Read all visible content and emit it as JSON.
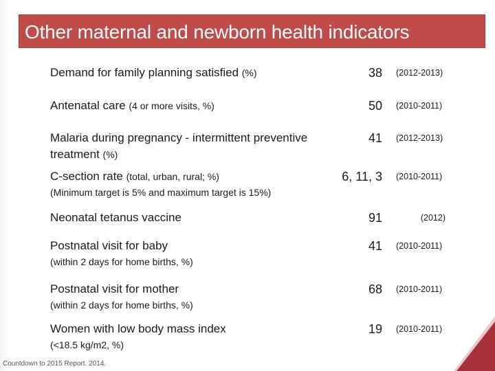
{
  "slide": {
    "title": "Other maternal and newborn health indicators",
    "source": "Countdown to 2015 Report. 2014."
  },
  "indicators": [
    {
      "label": "Demand for family planning satisfied",
      "note": "(%)",
      "sub": "",
      "value": "38",
      "period": "(2012-2013)"
    },
    {
      "label": "Antenatal care",
      "note": "(4 or more visits, %)",
      "sub": "",
      "value": "50",
      "period": "(2010-2011)"
    },
    {
      "label": "Malaria during pregnancy - intermittent preventive treatment",
      "note": "(%)",
      "sub": "",
      "value": "41",
      "period": "(2012-2013)"
    },
    {
      "label": "C-section rate",
      "note": "(total, urban, rural; %)",
      "sub": "(Minimum target is 5% and maximum target is 15%)",
      "value": "6, 11, 3",
      "period": "(2010-2011)"
    },
    {
      "label": "Neonatal tetanus vaccine",
      "note": "",
      "sub": "",
      "value": "91",
      "period": "(2012)"
    },
    {
      "label": "Postnatal visit for baby",
      "note": "",
      "sub": "(within 2 days for home births, %)",
      "value": "41",
      "period": "(2010-2011)"
    },
    {
      "label": "Postnatal visit for mother",
      "note": "",
      "sub": "(within 2 days for home births, %)",
      "value": "68",
      "period": "(2010-2011)"
    },
    {
      "label": "Women with low body mass index",
      "note": "",
      "sub": "(<18.5 kg/m2, %)",
      "value": "19",
      "period": "(2010-2011)"
    }
  ],
  "colors": {
    "title_band": "#bf4b4b",
    "corner_accent": "#a8303a"
  }
}
